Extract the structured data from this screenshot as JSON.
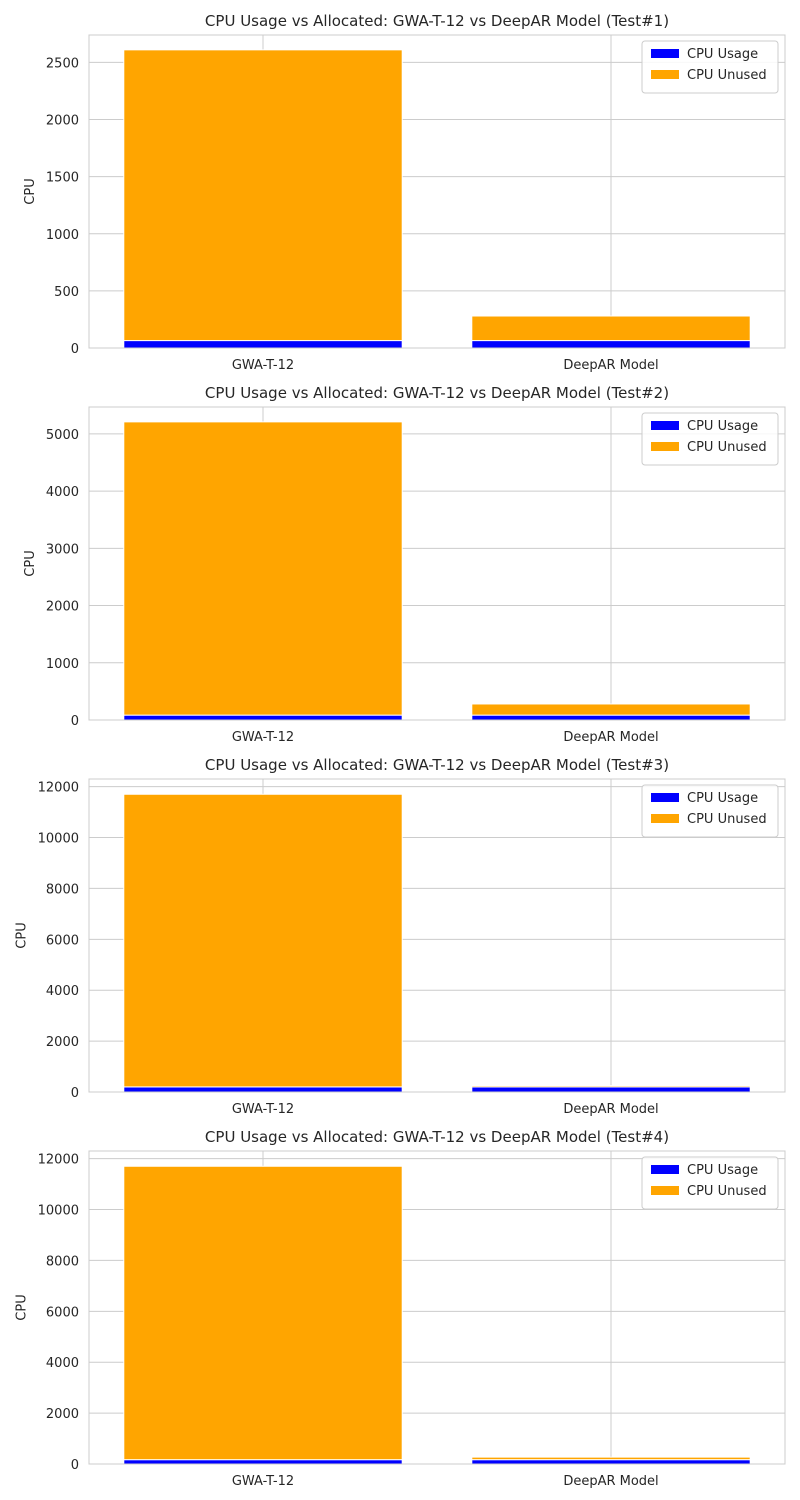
{
  "chart_data": [
    {
      "type": "bar",
      "stacked": true,
      "title": "CPU Usage vs Allocated: GWA-T-12 vs DeepAR Model (Test#1)",
      "xlabel": "",
      "ylabel": "CPU",
      "categories": [
        "GWA-T-12",
        "DeepAR Model"
      ],
      "series": [
        {
          "name": "CPU Usage",
          "color": "#0000ff",
          "values": [
            65,
            65
          ]
        },
        {
          "name": "CPU Unused",
          "color": "#ffa500",
          "values": [
            2545,
            215
          ]
        }
      ],
      "ylim": [
        0,
        2740
      ],
      "yticks": [
        0,
        500,
        1000,
        1500,
        2000,
        2500
      ],
      "grid": true,
      "legend": "top-right"
    },
    {
      "type": "bar",
      "stacked": true,
      "title": "CPU Usage vs Allocated: GWA-T-12 vs DeepAR Model (Test#2)",
      "xlabel": "",
      "ylabel": "CPU",
      "categories": [
        "GWA-T-12",
        "DeepAR Model"
      ],
      "series": [
        {
          "name": "CPU Usage",
          "color": "#0000ff",
          "values": [
            85,
            85
          ]
        },
        {
          "name": "CPU Unused",
          "color": "#ffa500",
          "values": [
            5125,
            195
          ]
        }
      ],
      "ylim": [
        0,
        5470
      ],
      "yticks": [
        0,
        1000,
        2000,
        3000,
        4000,
        5000
      ],
      "grid": true,
      "legend": "top-right"
    },
    {
      "type": "bar",
      "stacked": true,
      "title": "CPU Usage vs Allocated: GWA-T-12 vs DeepAR Model (Test#3)",
      "xlabel": "",
      "ylabel": "CPU",
      "categories": [
        "GWA-T-12",
        "DeepAR Model"
      ],
      "series": [
        {
          "name": "CPU Usage",
          "color": "#0000ff",
          "values": [
            200,
            200
          ]
        },
        {
          "name": "CPU Unused",
          "color": "#ffa500",
          "values": [
            11500,
            50
          ]
        }
      ],
      "ylim": [
        0,
        12300
      ],
      "yticks": [
        0,
        2000,
        4000,
        6000,
        8000,
        10000,
        12000
      ],
      "grid": true,
      "legend": "top-right"
    },
    {
      "type": "bar",
      "stacked": true,
      "title": "CPU Usage vs Allocated: GWA-T-12 vs DeepAR Model (Test#4)",
      "xlabel": "",
      "ylabel": "CPU",
      "categories": [
        "GWA-T-12",
        "DeepAR Model"
      ],
      "series": [
        {
          "name": "CPU Usage",
          "color": "#0000ff",
          "values": [
            170,
            170
          ]
        },
        {
          "name": "CPU Unused",
          "color": "#ffa500",
          "values": [
            11530,
            100
          ]
        }
      ],
      "ylim": [
        0,
        12300
      ],
      "yticks": [
        0,
        2000,
        4000,
        6000,
        8000,
        10000,
        12000
      ],
      "grid": true,
      "legend": "top-right"
    }
  ]
}
